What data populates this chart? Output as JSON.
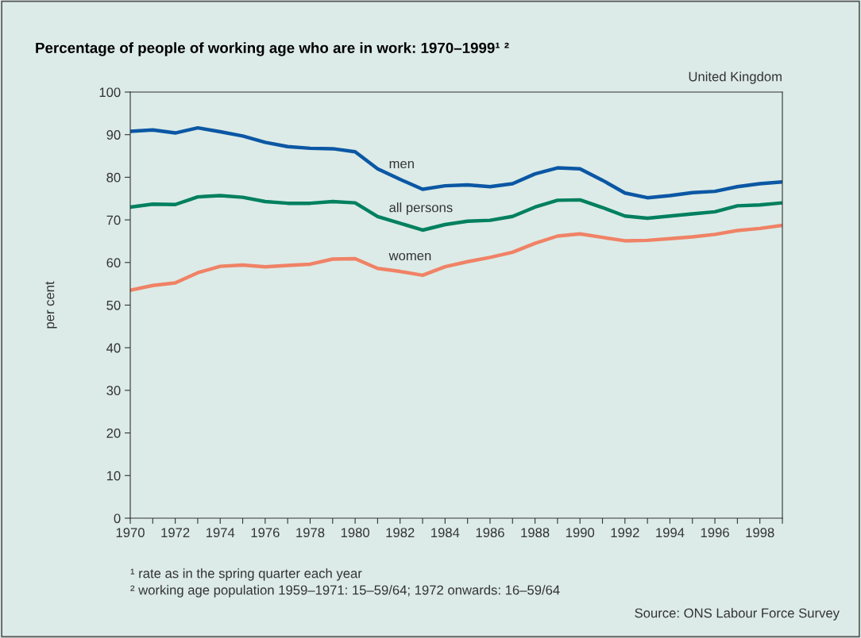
{
  "chart_data": {
    "type": "line",
    "title": "Percentage of people of working age who are in work: 1970–1999¹ ²",
    "subtitle": "United Kingdom",
    "ylabel": "per cent",
    "x": [
      1970,
      1971,
      1972,
      1973,
      1974,
      1975,
      1976,
      1977,
      1978,
      1979,
      1980,
      1981,
      1982,
      1983,
      1984,
      1985,
      1986,
      1987,
      1988,
      1989,
      1990,
      1991,
      1992,
      1993,
      1994,
      1995,
      1996,
      1997,
      1998,
      1999
    ],
    "series": [
      {
        "name": "men",
        "color": "#0b57a4",
        "values": [
          90.8,
          91.1,
          90.4,
          91.6,
          90.7,
          89.7,
          88.2,
          87.2,
          86.8,
          86.7,
          86.0,
          82.0,
          79.5,
          77.2,
          78.0,
          78.2,
          77.8,
          78.5,
          80.8,
          82.2,
          82.0,
          79.3,
          76.3,
          75.2,
          75.7,
          76.4,
          76.7,
          77.8,
          78.5,
          78.9
        ]
      },
      {
        "name": "all persons",
        "color": "#00805f",
        "values": [
          73.0,
          73.7,
          73.6,
          75.4,
          75.7,
          75.3,
          74.3,
          73.9,
          73.9,
          74.3,
          74.0,
          70.8,
          69.2,
          67.6,
          68.9,
          69.7,
          69.9,
          70.8,
          73.0,
          74.6,
          74.7,
          72.9,
          70.9,
          70.4,
          70.9,
          71.4,
          71.9,
          73.3,
          73.5,
          74.0
        ]
      },
      {
        "name": "women",
        "color": "#f08266",
        "values": [
          53.5,
          54.6,
          55.2,
          57.6,
          59.1,
          59.4,
          59.0,
          59.3,
          59.6,
          60.8,
          60.9,
          58.6,
          57.9,
          57.0,
          59.0,
          60.2,
          61.2,
          62.4,
          64.5,
          66.2,
          66.7,
          65.9,
          65.1,
          65.2,
          65.6,
          66.0,
          66.6,
          67.5,
          68.0,
          68.7
        ]
      }
    ],
    "xlim": [
      1970,
      1999
    ],
    "xticks": [
      1970,
      {
        "value": 1971,
        "label": null
      },
      1972,
      {
        "value": 1973,
        "label": null
      },
      1974,
      {
        "value": 1975,
        "label": null
      },
      1976,
      {
        "value": 1977,
        "label": null
      },
      1978,
      {
        "value": 1979,
        "label": null
      },
      1980,
      {
        "value": 1981,
        "label": null
      },
      1982,
      {
        "value": 1983,
        "label": null
      },
      1984,
      {
        "value": 1985,
        "label": null
      },
      1986,
      {
        "value": 1987,
        "label": null
      },
      1988,
      {
        "value": 1989,
        "label": null
      },
      1990,
      {
        "value": 1991,
        "label": null
      },
      1992,
      {
        "value": 1993,
        "label": null
      },
      1994,
      {
        "value": 1995,
        "label": null
      },
      1996,
      {
        "value": 1997,
        "label": null
      },
      1998,
      {
        "value": 1999,
        "label": null
      }
    ],
    "ylim": [
      0,
      100
    ],
    "yticks": [
      0,
      10,
      20,
      30,
      40,
      50,
      60,
      70,
      80,
      90,
      100
    ],
    "grid": false,
    "legend": false,
    "marker": "none",
    "line_style": "solid",
    "annotations": [
      "¹ rate as in the spring quarter each year",
      "² working age population 1959–1971: 15–59/64; 1972 onwards: 16–59/64",
      "Source: ONS Labour Force Survey"
    ]
  }
}
